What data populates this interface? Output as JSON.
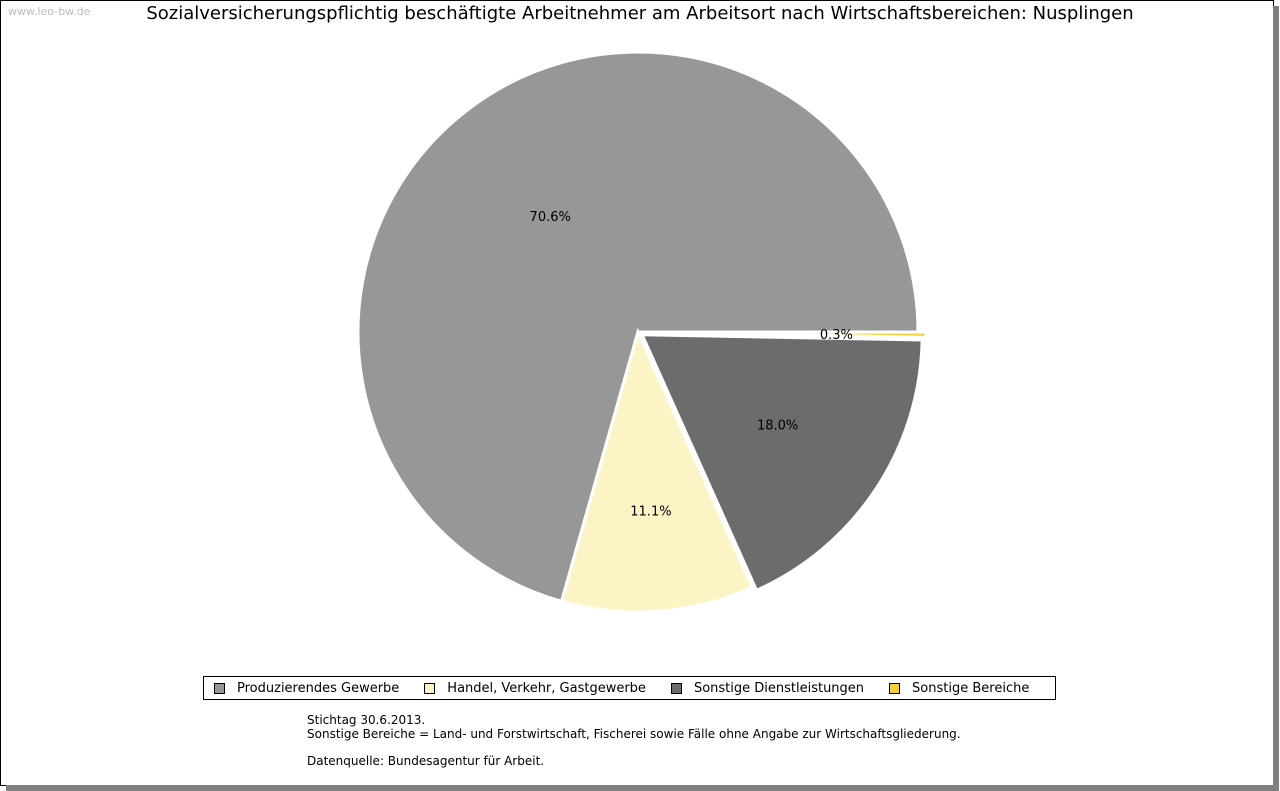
{
  "watermark": "www.leo-bw.de",
  "chart_data": {
    "type": "pie",
    "title": "Sozialversicherungspflichtig beschäftigte Arbeitnehmer am Arbeitsort nach Wirtschaftsbereichen: Nusplingen",
    "categories": [
      "Produzierendes Gewerbe",
      "Handel, Verkehr, Gastgewerbe",
      "Sonstige Dienstleistungen",
      "Sonstige Bereiche"
    ],
    "values": [
      70.6,
      11.1,
      18.0,
      0.3
    ],
    "labels": [
      "70.6%",
      "11.1%",
      "18.0%",
      "0.3%"
    ],
    "colors": [
      "#979797",
      "#fdf4c6",
      "#6c6c6c",
      "#f5cf3a"
    ],
    "legend_position": "bottom"
  },
  "notes": {
    "line1": "Stichtag 30.6.2013.",
    "line2": "Sonstige Bereiche = Land- und Forstwirtschaft, Fischerei sowie Fälle ohne Angabe zur Wirtschaftsgliederung.",
    "source": "Datenquelle: Bundesagentur für Arbeit."
  }
}
